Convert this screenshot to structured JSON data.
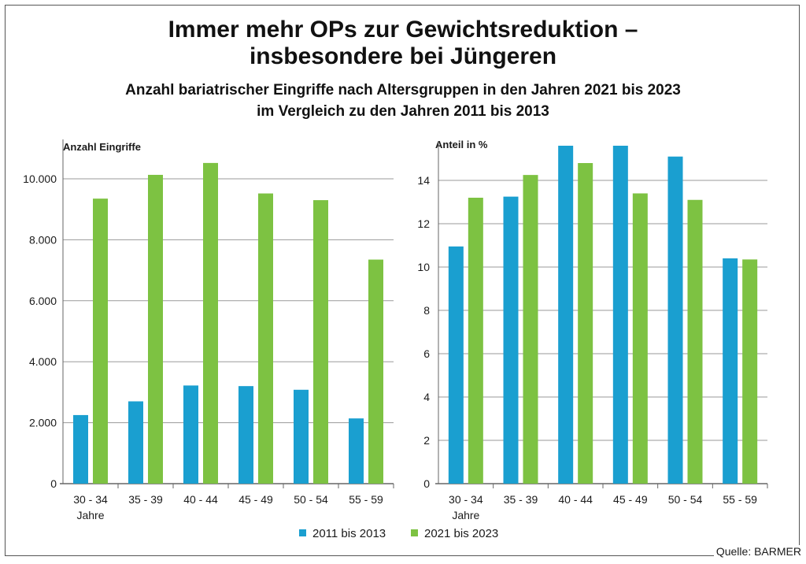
{
  "header": {
    "title_line1": "Immer mehr OPs zur Gewichtsreduktion –",
    "title_line2": "insbesondere bei Jüngeren",
    "subtitle_line1": "Anzahl bariatrischer Eingriffe nach Altersgruppen in den Jahren 2021 bis 2023",
    "subtitle_line2": "im Vergleich zu den Jahren 2011 bis 2013"
  },
  "source": "Quelle: BARMER",
  "colors": {
    "series1": "#1a9fd0",
    "series2": "#7dc242",
    "grid": "#9a9a9a",
    "axis": "#666666"
  },
  "chart_data": [
    {
      "type": "bar",
      "ylabel": "Anzahl Eingriffe",
      "categories": [
        "30 - 34",
        "35 - 39",
        "40 - 44",
        "45 - 49",
        "50 - 54",
        "55 - 59"
      ],
      "category_note": "Jahre",
      "ylim": [
        0,
        10000
      ],
      "yticks": [
        0,
        2000,
        4000,
        6000,
        8000,
        10000
      ],
      "ytick_labels": [
        "0",
        "2.000",
        "4.000",
        "6.000",
        "8.000",
        "10.000"
      ],
      "grid": true,
      "series": [
        {
          "name": "2011 bis 2013",
          "values": [
            2250,
            2700,
            3220,
            3200,
            3080,
            2140
          ]
        },
        {
          "name": "2021 bis 2023",
          "values": [
            9350,
            10130,
            10520,
            9520,
            9300,
            7350
          ]
        }
      ]
    },
    {
      "type": "bar",
      "ylabel": "Anteil in %",
      "categories": [
        "30 - 34",
        "35 - 39",
        "40 - 44",
        "45 - 49",
        "50 - 54",
        "55 - 59"
      ],
      "category_note": "Jahre",
      "ylim": [
        0,
        15
      ],
      "yticks": [
        0,
        2,
        4,
        6,
        8,
        10,
        12,
        14
      ],
      "ytick_labels": [
        "0",
        "2",
        "4",
        "6",
        "8",
        "10",
        "12",
        "14"
      ],
      "grid": true,
      "series": [
        {
          "name": "2011 bis 2013",
          "values": [
            10.95,
            13.25,
            15.6,
            15.6,
            15.1,
            10.4
          ]
        },
        {
          "name": "2021 bis 2023",
          "values": [
            13.2,
            14.25,
            14.8,
            13.4,
            13.1,
            10.35
          ]
        }
      ]
    }
  ],
  "legend": {
    "position": "bottom",
    "items": [
      "2011 bis 2013",
      "2021 bis 2023"
    ]
  }
}
